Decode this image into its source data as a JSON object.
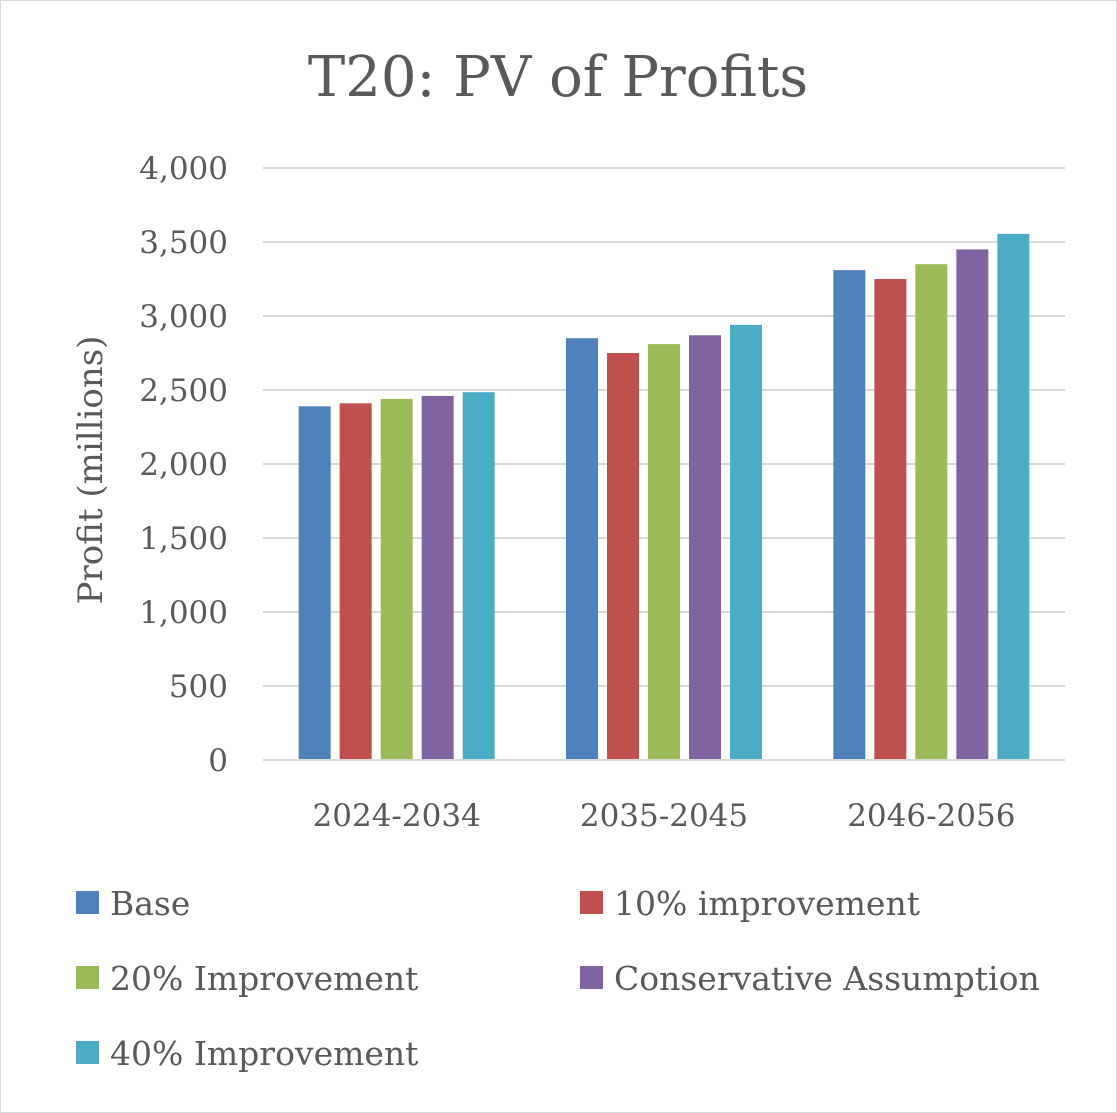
{
  "chart_data": {
    "type": "bar",
    "title": "T20: PV of Profits",
    "xlabel": "",
    "ylabel": "Profit (millions)",
    "ylim": [
      0,
      4000
    ],
    "yticks": [
      0,
      500,
      1000,
      1500,
      2000,
      2500,
      3000,
      3500,
      4000
    ],
    "ytick_labels": [
      "0",
      "500",
      "1,000",
      "1,500",
      "2,000",
      "2,500",
      "3,000",
      "3,500",
      "4,000"
    ],
    "grid": true,
    "legend_position": "bottom",
    "categories": [
      "2024-2034",
      "2035-2045",
      "2046-2056"
    ],
    "series": [
      {
        "name": "Base",
        "color": "#4F81BD",
        "values": [
          2390,
          2850,
          3310
        ]
      },
      {
        "name": "10% improvement",
        "color": "#C0504D",
        "values": [
          2410,
          2750,
          3250
        ]
      },
      {
        "name": "20% Improvement",
        "color": "#9BBB59",
        "values": [
          2440,
          2810,
          3350
        ]
      },
      {
        "name": "Conservative Assumption",
        "color": "#8064A2",
        "values": [
          2460,
          2870,
          3450
        ]
      },
      {
        "name": "40% Improvement",
        "color": "#4BACC6",
        "values": [
          2485,
          2940,
          3555
        ]
      }
    ]
  }
}
